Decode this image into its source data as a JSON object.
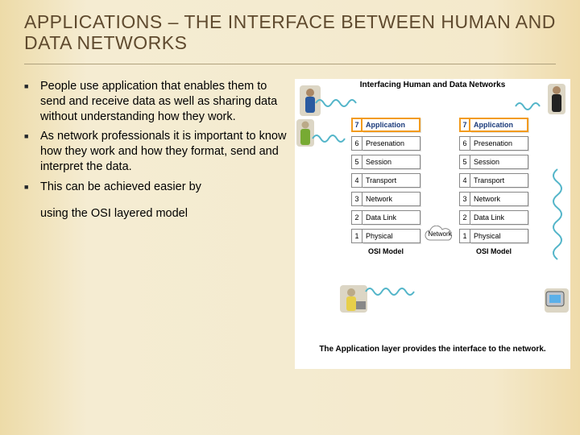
{
  "title": "APPLICATIONS – THE INTERFACE BETWEEN HUMAN AND DATA NETWORKS",
  "bullets": [
    "People use application that enables them to send and receive data as well as sharing data without understanding how they work.",
    "As network professionals it is important to know how they work and how they format, send and interpret the data.",
    "This can be achieved easier by"
  ],
  "bullet_continuation": "using the OSI layered model",
  "bullet_symbol": "■",
  "diagram": {
    "heading": "Interfacing Human and Data Networks",
    "cloud_label": "Network",
    "stack_label": "OSI Model",
    "caption": "The Application layer provides the interface to the network.",
    "layers": [
      {
        "n": "7",
        "name": "Application",
        "highlight": true
      },
      {
        "n": "6",
        "name": "Presenation",
        "highlight": false
      },
      {
        "n": "5",
        "name": "Session",
        "highlight": false
      },
      {
        "n": "4",
        "name": "Transport",
        "highlight": false
      },
      {
        "n": "3",
        "name": "Network",
        "highlight": false
      },
      {
        "n": "2",
        "name": "Data Link",
        "highlight": false
      },
      {
        "n": "1",
        "name": "Physical",
        "highlight": false
      }
    ]
  },
  "colors": {
    "title_text": "#5f4a2e",
    "highlight_border": "#f29b1e",
    "highlight_text": "#1a3a7a",
    "squiggle": "#53b5c9"
  }
}
